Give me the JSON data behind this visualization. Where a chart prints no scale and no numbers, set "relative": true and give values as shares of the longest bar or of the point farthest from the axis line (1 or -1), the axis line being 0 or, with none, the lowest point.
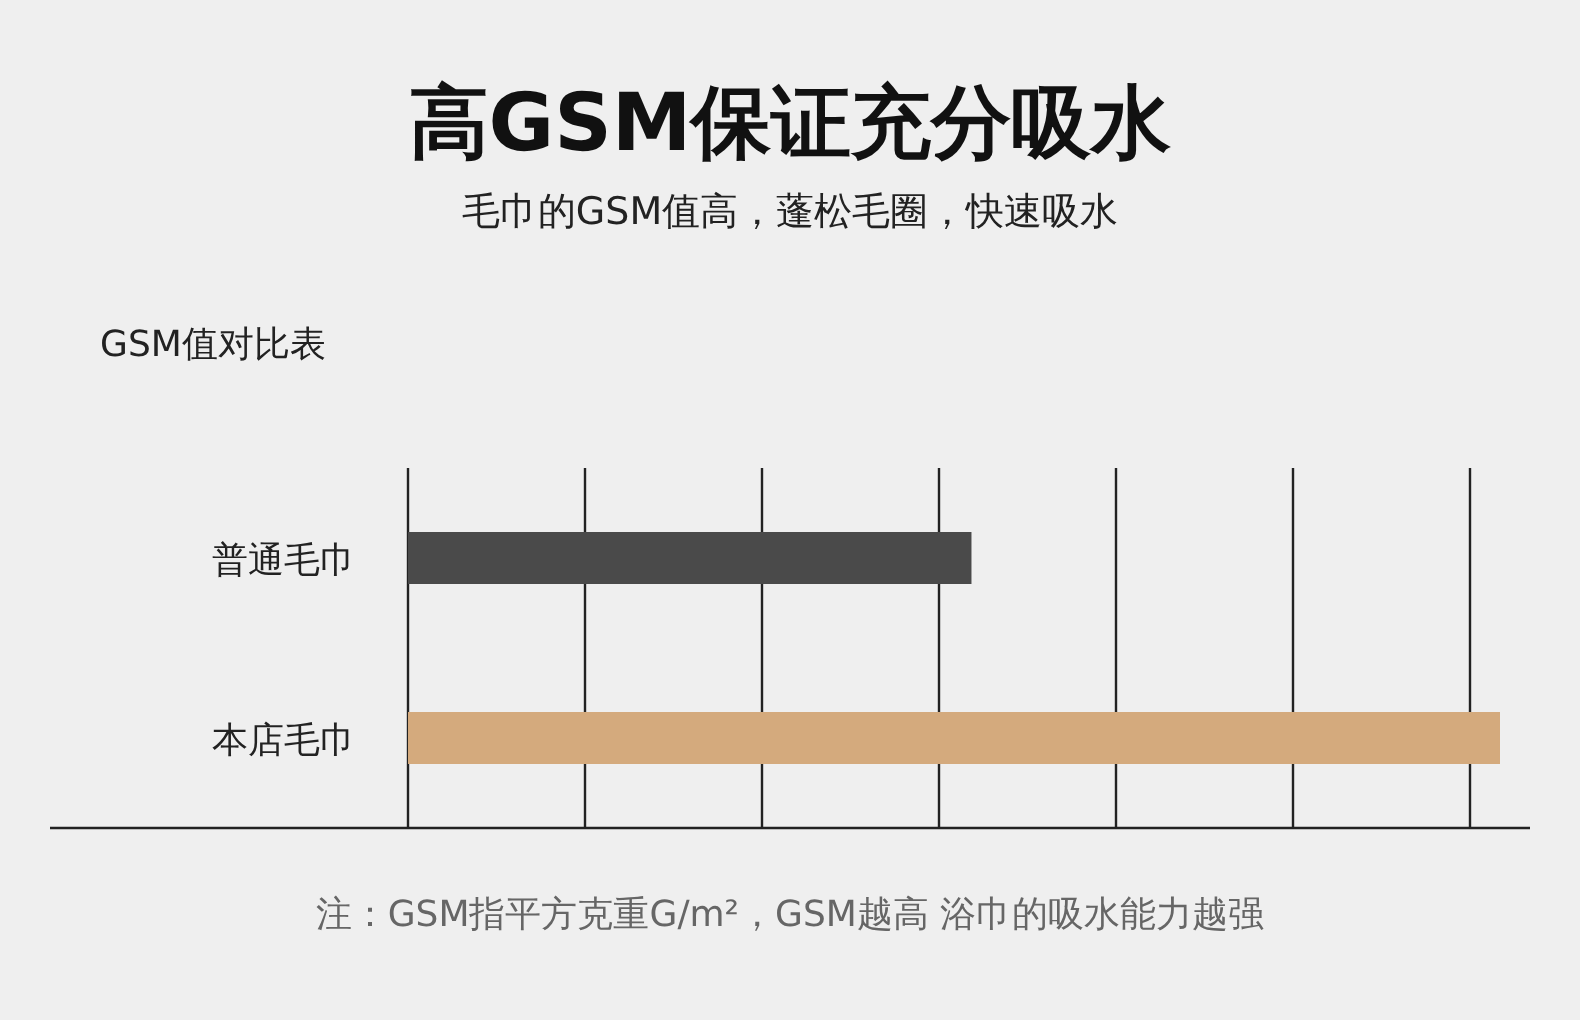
{
  "chart_data": {
    "type": "bar",
    "orientation": "horizontal",
    "relative": true,
    "grid": "x",
    "title": "高GSM保证充分吸水",
    "subtitle": "毛巾的GSM值高，蓬松毛圈，快速吸水",
    "ylabel": "GSM值对比表",
    "categories": [
      "普通毛巾",
      "本店毛巾"
    ],
    "values": [
      0.516,
      1
    ],
    "colors": [
      "#4a4a4a",
      "#d4aa7d"
    ],
    "annotations": [
      "注：GSM指平方克重G/m²，GSM越高 浴巾的吸水能力越强"
    ]
  }
}
